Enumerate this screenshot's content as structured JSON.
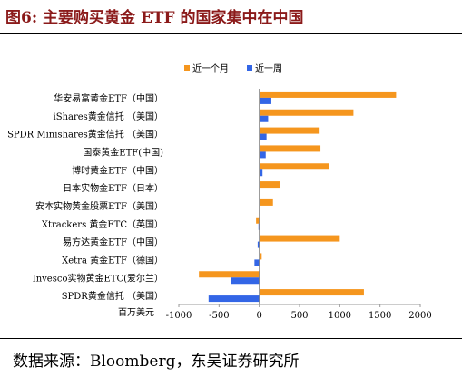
{
  "title": "图6:  主要购买黄金 ETF 的国家集中在中国",
  "source": "数据来源：Bloomberg，东吴证券研究所",
  "colors": {
    "series_month": "#f5961e",
    "series_week": "#3366e6",
    "title": "#8b1a1a"
  },
  "chart_data": {
    "type": "bar",
    "orientation": "horizontal",
    "unit_label": "百万美元",
    "categories": [
      "华安易富黄金ETF（中国）",
      "iShares黄金信托 （美国）",
      "SPDR Minishares黄金信托 （美国）",
      "国泰黄金ETF(中国)",
      "博时黄金ETF（中国）",
      "日本实物金ETF（日本）",
      "安本实物黄金股票ETF（美国）",
      "Xtrackers 黄金ETC（英国）",
      "易方达黄金ETF（中国）",
      "Xetra 黄金ETF（德国）",
      "Invesco实物黄金ETC(爱尔兰）",
      "SPDR黄金信托 （美国）"
    ],
    "series": [
      {
        "name": "近一个月",
        "values": [
          1700,
          1170,
          750,
          760,
          870,
          260,
          170,
          -40,
          1000,
          30,
          -750,
          1300
        ]
      },
      {
        "name": "近一周",
        "values": [
          150,
          110,
          90,
          80,
          40,
          0,
          0,
          -10,
          -20,
          -60,
          -350,
          -630
        ]
      }
    ],
    "xlim": [
      -1000,
      2000
    ],
    "xticks": [
      -1000,
      -500,
      0,
      500,
      1000,
      1500,
      2000
    ],
    "legend": "top-center"
  }
}
